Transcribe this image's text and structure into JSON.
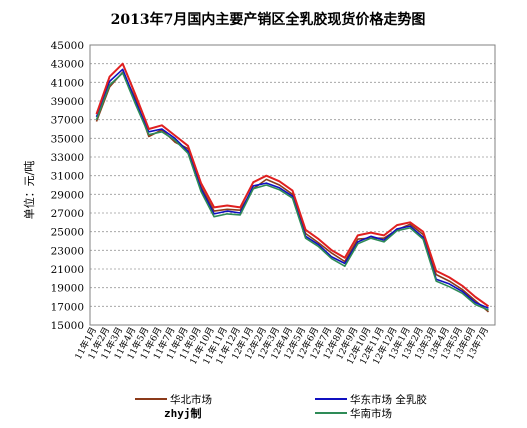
{
  "chart_data": {
    "type": "line",
    "title": "2013年7月国内主要产销区全乳胶现货价格走势图",
    "ylabel": "单位：元/吨",
    "ylim": [
      15000,
      45000
    ],
    "yticks": [
      "45000",
      "43000",
      "41000",
      "39000",
      "37000",
      "35000",
      "33000",
      "31000",
      "29000",
      "27000",
      "25000",
      "23000",
      "21000",
      "19000",
      "17000",
      "15000"
    ],
    "categories": [
      "11年1月",
      "11年2月",
      "11年3月",
      "11年4月",
      "11年5月",
      "11年6月",
      "11年7月",
      "11年8月",
      "11年9月",
      "11年10月",
      "11年11月",
      "11年12月",
      "12年1月",
      "12年2月",
      "12年3月",
      "12年4月",
      "12年5月",
      "12年6月",
      "12年7月",
      "12年8月",
      "12年9月",
      "12年10月",
      "12年11月",
      "12年12月",
      "13年1月",
      "13年2月",
      "13年3月",
      "13年4月",
      "13年5月",
      "13年6月",
      "13年7月"
    ],
    "grid": true,
    "legend_position": "bottom",
    "series": [
      {
        "name": "华北市场",
        "color": "#8B3A1A",
        "values": [
          36800,
          40500,
          42100,
          39200,
          35200,
          35900,
          34600,
          33900,
          29800,
          27200,
          27400,
          27300,
          29600,
          30600,
          30000,
          29000,
          24800,
          23800,
          22700,
          21800,
          24200,
          24300,
          24300,
          25200,
          25800,
          24700,
          20400,
          19700,
          18800,
          17600,
          16400
        ]
      },
      {
        "name": "华东市场 全乳胶",
        "color": "#1010C0",
        "values": [
          37300,
          41100,
          42400,
          38900,
          35700,
          36000,
          35000,
          33600,
          29600,
          26900,
          27200,
          27000,
          29900,
          30200,
          29700,
          28800,
          24500,
          23600,
          22300,
          21600,
          23900,
          24500,
          24100,
          25300,
          25600,
          24400,
          19900,
          19400,
          18600,
          17400,
          16800
        ]
      },
      {
        "name": "华南市场",
        "color": "#2E8B57",
        "values": [
          37000,
          40700,
          42000,
          38600,
          35400,
          35700,
          34800,
          33400,
          29300,
          26600,
          26900,
          26800,
          29600,
          30000,
          29500,
          28600,
          24300,
          23400,
          22100,
          21300,
          23700,
          24300,
          23900,
          25100,
          25400,
          24200,
          19700,
          19100,
          18400,
          17200,
          16600
        ]
      },
      {
        "name": "",
        "color": "#E02020",
        "values": [
          37600,
          41600,
          43000,
          39600,
          36000,
          36400,
          35300,
          34200,
          30200,
          27600,
          27800,
          27600,
          30300,
          31000,
          30400,
          29400,
          25200,
          24200,
          23000,
          22200,
          24600,
          24900,
          24600,
          25700,
          26000,
          25000,
          20800,
          20100,
          19200,
          18000,
          17000
        ]
      }
    ],
    "legend_labels": [
      "华北市场",
      "华东市场 全乳胶",
      "华南市场"
    ],
    "credit": "zhyj制"
  }
}
